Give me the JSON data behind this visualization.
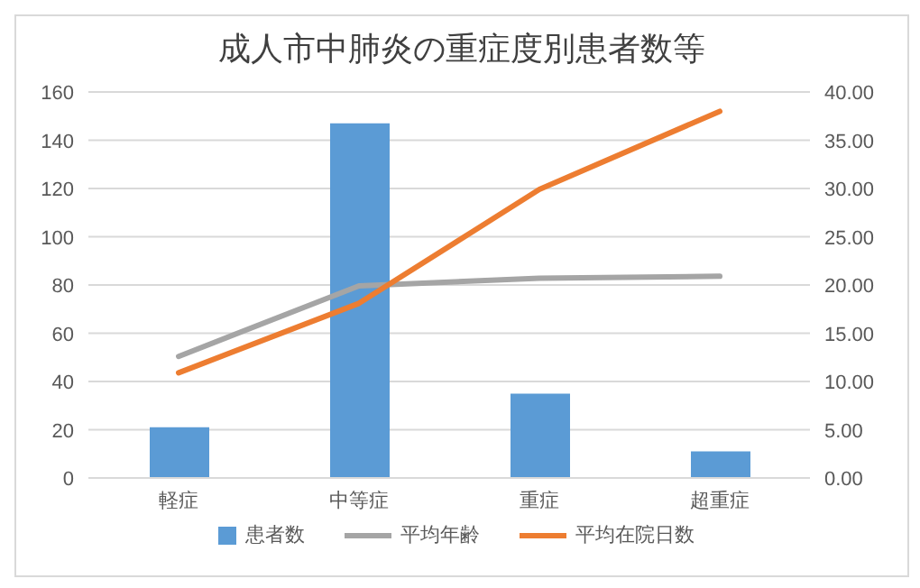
{
  "chart_data": {
    "type": "bar",
    "title": "成人市中肺炎の重症度別患者数等",
    "categories": [
      "軽症",
      "中等症",
      "重症",
      "超重症"
    ],
    "series": [
      {
        "name": "患者数",
        "color": "#5b9bd5",
        "values": [
          21,
          147,
          35,
          11
        ]
      },
      {
        "name": "平均年齢",
        "type": "line",
        "axis": "y2",
        "color": "#a5a5a5",
        "values": [
          12.6,
          19.9,
          20.7,
          20.9
        ]
      },
      {
        "name": "平均在院日数",
        "type": "line",
        "axis": "y2",
        "color": "#ed7d31",
        "values": [
          10.9,
          18.1,
          29.9,
          38.0
        ]
      }
    ],
    "ylim": [
      0,
      160
    ],
    "yticks": [
      0,
      20,
      40,
      60,
      80,
      100,
      120,
      140,
      160
    ],
    "y2lim": [
      0,
      40
    ],
    "y2ticks": [
      {
        "value": 0,
        "label": "0.00"
      },
      {
        "value": 5,
        "label": "5.00"
      },
      {
        "value": 10,
        "label": "10.00"
      },
      {
        "value": 15,
        "label": "15.00"
      },
      {
        "value": 20,
        "label": "20.00"
      },
      {
        "value": 25,
        "label": "25.00"
      },
      {
        "value": 30,
        "label": "30.00"
      },
      {
        "value": 35,
        "label": "35.00"
      },
      {
        "value": 40,
        "label": "40.00"
      }
    ],
    "grid": "y",
    "legend": "bottom",
    "marker": "none",
    "line_style": "solid"
  }
}
